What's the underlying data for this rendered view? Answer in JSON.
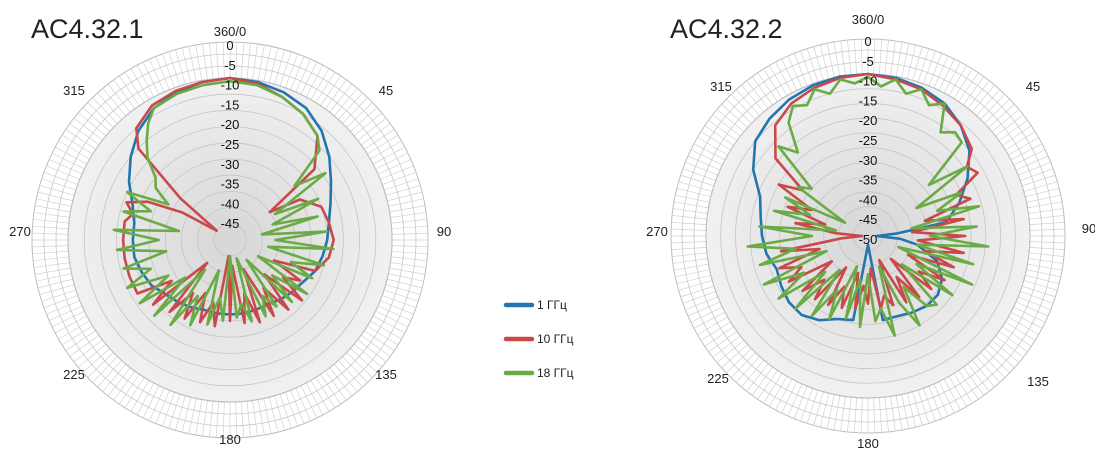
{
  "chart_data": [
    {
      "type": "polar-line",
      "title": "AC4.32.1",
      "angle_ticks": [
        "360/0",
        "45",
        "90",
        "135",
        "180",
        "225",
        "270",
        "315"
      ],
      "radial_ticks": [
        "0",
        "-5",
        "-10",
        "-15",
        "-20",
        "-25",
        "-30",
        "-35",
        "-40",
        "-45"
      ],
      "rlim": [
        -50,
        0
      ],
      "series": [
        {
          "name": "1 ГГц",
          "color": "#2176ae",
          "angles": [
            0,
            10,
            20,
            30,
            40,
            50,
            60,
            70,
            80,
            90,
            100,
            110,
            120,
            130,
            140,
            150,
            160,
            170,
            180,
            190,
            200,
            210,
            220,
            230,
            240,
            250,
            260,
            270,
            280,
            290,
            300,
            310,
            320,
            330,
            340,
            350
          ],
          "values": [
            0,
            -0.5,
            -1.5,
            -3,
            -6,
            -10,
            -14,
            -17,
            -19,
            -20,
            -21,
            -22,
            -24,
            -25,
            -26,
            -27,
            -27,
            -27,
            -27,
            -27,
            -27,
            -26,
            -25,
            -24,
            -22,
            -21,
            -20,
            -20,
            -20,
            -18,
            -14,
            -10,
            -6,
            -3,
            -1.5,
            -0.5
          ]
        },
        {
          "name": "10 ГГц",
          "color": "#c9494a",
          "angles": [
            0,
            10,
            20,
            30,
            40,
            50,
            55,
            60,
            70,
            80,
            90,
            100,
            110,
            115,
            120,
            125,
            130,
            135,
            140,
            145,
            150,
            155,
            160,
            165,
            170,
            175,
            180,
            185,
            190,
            195,
            200,
            205,
            210,
            215,
            220,
            225,
            230,
            235,
            240,
            250,
            260,
            270,
            280,
            285,
            290,
            295,
            300,
            305,
            310,
            315,
            320,
            330,
            340,
            350
          ],
          "values": [
            0,
            -1,
            -3,
            -5,
            -8,
            -16,
            -35,
            -25,
            -20,
            -19,
            -18,
            -19,
            -22,
            -35,
            -25,
            -30,
            -21,
            -35,
            -22,
            -32,
            -23,
            -40,
            -23,
            -33,
            -24,
            -42,
            -25,
            -45,
            -23,
            -30,
            -23,
            -32,
            -22,
            -30,
            -21,
            -40,
            -19,
            -28,
            -17,
            -17,
            -17,
            -17,
            -17,
            -19,
            -16,
            -22,
            -33,
            -45,
            -30,
            -10,
            -5,
            -2,
            -1,
            -0.5
          ]
        },
        {
          "name": "18 ГГц",
          "color": "#6aab46",
          "angles": [
            0,
            10,
            20,
            30,
            40,
            45,
            50,
            55,
            60,
            65,
            70,
            75,
            80,
            85,
            90,
            95,
            100,
            105,
            110,
            115,
            120,
            125,
            130,
            135,
            140,
            145,
            150,
            155,
            160,
            165,
            170,
            175,
            180,
            185,
            190,
            195,
            200,
            205,
            210,
            215,
            220,
            225,
            230,
            235,
            240,
            245,
            250,
            255,
            260,
            265,
            270,
            275,
            280,
            285,
            290,
            295,
            300,
            305,
            310,
            315,
            320,
            325,
            330,
            340,
            350
          ],
          "values": [
            -1,
            -1.5,
            -3,
            -5,
            -8,
            -11,
            -24,
            -14,
            -34,
            -20,
            -36,
            -22,
            -40,
            -20,
            -36,
            -18,
            -38,
            -20,
            -30,
            -22,
            -40,
            -21,
            -33,
            -23,
            -42,
            -25,
            -30,
            -24,
            -44,
            -24,
            -30,
            -26,
            -45,
            -25,
            -32,
            -23,
            -40,
            -21,
            -30,
            -18,
            -38,
            -17,
            -32,
            -16,
            -28,
            -15,
            -24,
            -16,
            -30,
            -15,
            -28,
            -14,
            -34,
            -16,
            -24,
            -15,
            -28,
            -22,
            -20,
            -14,
            -10,
            -6,
            -3,
            -2,
            -1.5
          ]
        }
      ]
    },
    {
      "type": "polar-line",
      "title": "AC4.32.2",
      "angle_ticks": [
        "360/0",
        "45",
        "90",
        "135",
        "180",
        "225",
        "270",
        "315"
      ],
      "radial_ticks": [
        "0",
        "-5",
        "-10",
        "-15",
        "-20",
        "-25",
        "-30",
        "-35",
        "-40",
        "-45",
        "-50"
      ],
      "rlim": [
        -55,
        0
      ],
      "series": [
        {
          "name": "1 ГГц",
          "color": "#2176ae",
          "angles": [
            0,
            10,
            20,
            30,
            40,
            50,
            60,
            70,
            80,
            85,
            90,
            95,
            100,
            110,
            120,
            130,
            140,
            150,
            160,
            170,
            180,
            190,
            200,
            210,
            220,
            230,
            240,
            250,
            260,
            270,
            280,
            290,
            300,
            310,
            320,
            330,
            340,
            350
          ],
          "values": [
            0,
            -0.5,
            -1.5,
            -3,
            -6,
            -10,
            -16,
            -22,
            -28,
            -45,
            -52,
            -44,
            -38,
            -30,
            -26,
            -24,
            -24,
            -25,
            -26,
            -26,
            -52,
            -26,
            -25,
            -22,
            -20,
            -20,
            -21,
            -22,
            -20,
            -19,
            -18,
            -16,
            -10,
            -5,
            -3,
            -1.5,
            -0.5,
            0
          ]
        },
        {
          "name": "10 ГГц",
          "color": "#c9494a",
          "angles": [
            0,
            10,
            20,
            30,
            40,
            50,
            55,
            60,
            65,
            70,
            75,
            80,
            85,
            90,
            95,
            100,
            105,
            110,
            115,
            120,
            125,
            130,
            135,
            140,
            145,
            150,
            155,
            160,
            165,
            170,
            175,
            180,
            185,
            190,
            195,
            200,
            205,
            210,
            215,
            220,
            225,
            230,
            235,
            240,
            245,
            250,
            255,
            260,
            265,
            270,
            275,
            280,
            285,
            290,
            295,
            300,
            305,
            310,
            320,
            330,
            340,
            350
          ],
          "values": [
            0,
            -1,
            -2,
            -4,
            -6,
            -9,
            -14,
            -12,
            -22,
            -18,
            -35,
            -22,
            -40,
            -22,
            -38,
            -22,
            -35,
            -24,
            -40,
            -25,
            -34,
            -27,
            -44,
            -28,
            -38,
            -29,
            -46,
            -30,
            -34,
            -30,
            -44,
            -32,
            -38,
            -30,
            -42,
            -29,
            -36,
            -28,
            -42,
            -27,
            -34,
            -26,
            -40,
            -24,
            -30,
            -23,
            -38,
            -25,
            -46,
            -53,
            -44,
            -30,
            -40,
            -26,
            -34,
            -20,
            -28,
            -14,
            -6,
            -3,
            -1.5,
            -0.5
          ]
        },
        {
          "name": "18 ГГц",
          "color": "#6aab46",
          "angles": [
            0,
            5,
            10,
            15,
            20,
            25,
            30,
            35,
            40,
            45,
            50,
            55,
            60,
            65,
            70,
            75,
            80,
            85,
            90,
            95,
            100,
            105,
            110,
            115,
            120,
            125,
            130,
            135,
            140,
            145,
            150,
            155,
            160,
            165,
            170,
            175,
            180,
            185,
            190,
            195,
            200,
            205,
            210,
            215,
            220,
            225,
            230,
            235,
            240,
            245,
            250,
            255,
            260,
            265,
            270,
            275,
            280,
            285,
            290,
            295,
            300,
            305,
            310,
            315,
            320,
            325,
            330,
            335,
            340,
            345,
            350,
            355
          ],
          "values": [
            -1,
            -4,
            -1,
            -5,
            -2,
            -6,
            -3,
            -12,
            -9,
            -10,
            -28,
            -14,
            -36,
            -20,
            -30,
            -16,
            -40,
            -18,
            -34,
            -14,
            -38,
            -18,
            -44,
            -16,
            -36,
            -20,
            -40,
            -22,
            -24,
            -34,
            -20,
            -30,
            -44,
            -20,
            -30,
            -26,
            -42,
            -24,
            -40,
            -26,
            -44,
            -24,
            -34,
            -22,
            -40,
            -20,
            -36,
            -18,
            -30,
            -16,
            -40,
            -17,
            -30,
            -14,
            -36,
            -18,
            -44,
            -22,
            -34,
            -24,
            -46,
            -26,
            -30,
            -12,
            -18,
            -8,
            -4,
            -6,
            -2,
            -5,
            -1,
            -3
          ]
        }
      ]
    }
  ],
  "legend": [
    {
      "label": "1 ГГц",
      "color": "#2176ae"
    },
    {
      "label": "10 ГГц",
      "color": "#c9494a"
    },
    {
      "label": "18 ГГц",
      "color": "#6aab46"
    }
  ]
}
